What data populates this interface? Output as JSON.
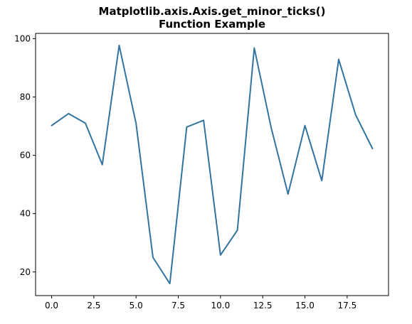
{
  "chart_data": {
    "type": "line",
    "title_lines": [
      "Matplotlib.axis.Axis.get_minor_ticks()",
      "Function Example"
    ],
    "xlabel": "",
    "ylabel": "",
    "x": [
      0,
      1,
      2,
      3,
      4,
      5,
      6,
      7,
      8,
      9,
      10,
      11,
      12,
      13,
      14,
      15,
      16,
      17,
      18,
      19
    ],
    "series": [
      {
        "values": [
          70.2,
          74.3,
          71.0,
          56.8,
          97.7,
          70.9,
          25.0,
          16.0,
          69.7,
          72.0,
          25.8,
          34.3,
          96.8,
          69.5,
          46.7,
          70.2,
          51.3,
          92.9,
          73.9,
          62.3
        ],
        "color": "#3274a1"
      }
    ],
    "xlim": [
      -0.95,
      19.95
    ],
    "ylim": [
      11.9,
      101.8
    ],
    "x_ticks": [
      0.0,
      2.5,
      5.0,
      7.5,
      10.0,
      12.5,
      15.0,
      17.5
    ],
    "x_tick_labels": [
      "0.0",
      "2.5",
      "5.0",
      "7.5",
      "10.0",
      "12.5",
      "15.0",
      "17.5"
    ],
    "y_ticks": [
      20,
      40,
      60,
      80,
      100
    ],
    "y_tick_labels": [
      "20",
      "40",
      "60",
      "80",
      "100"
    ],
    "grid": false,
    "legend": "none"
  }
}
